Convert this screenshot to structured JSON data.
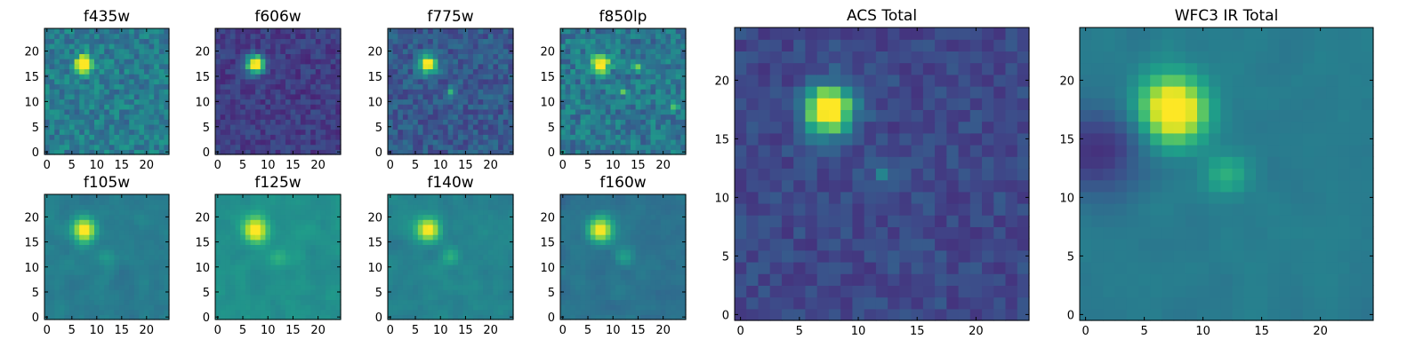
{
  "colormap": [
    "#440154",
    "#482878",
    "#3e4989",
    "#31688e",
    "#26828e",
    "#1f9e89",
    "#35b779",
    "#6ece58",
    "#b5de2b",
    "#fde725"
  ],
  "chart_data": [
    {
      "type": "heatmap",
      "title": "f435w",
      "grid_size": 25,
      "xticks": [
        0,
        5,
        10,
        15,
        20
      ],
      "yticks": [
        0,
        5,
        10,
        15,
        20
      ],
      "source": {
        "x": 7.5,
        "y": 17.5,
        "sigma": 1.2,
        "amp": 0.85
      },
      "extra_sources": [],
      "background": 0.42,
      "noise": 0.12,
      "smooth": 0
    },
    {
      "type": "heatmap",
      "title": "f606w",
      "grid_size": 25,
      "xticks": [
        0,
        5,
        10,
        15,
        20
      ],
      "yticks": [
        0,
        5,
        10,
        15,
        20
      ],
      "source": {
        "x": 7.5,
        "y": 17.5,
        "sigma": 1.25,
        "amp": 0.95
      },
      "extra_sources": [],
      "background": 0.18,
      "noise": 0.08,
      "smooth": 0
    },
    {
      "type": "heatmap",
      "title": "f775w",
      "grid_size": 25,
      "xticks": [
        0,
        5,
        10,
        15,
        20
      ],
      "yticks": [
        0,
        5,
        10,
        15,
        20
      ],
      "source": {
        "x": 7.5,
        "y": 17.5,
        "sigma": 1.2,
        "amp": 0.9
      },
      "extra_sources": [
        {
          "x": 12,
          "y": 12,
          "sigma": 0.7,
          "amp": 0.3
        }
      ],
      "background": 0.28,
      "noise": 0.1,
      "smooth": 0
    },
    {
      "type": "heatmap",
      "title": "f850lp",
      "grid_size": 25,
      "xticks": [
        0,
        5,
        10,
        15,
        20
      ],
      "yticks": [
        0,
        5,
        10,
        15,
        20
      ],
      "source": {
        "x": 7.5,
        "y": 17.5,
        "sigma": 1.2,
        "amp": 0.8
      },
      "extra_sources": [
        {
          "x": 15,
          "y": 17,
          "sigma": 0.6,
          "amp": 0.35
        },
        {
          "x": 12,
          "y": 12,
          "sigma": 0.6,
          "amp": 0.25
        },
        {
          "x": 22,
          "y": 9,
          "sigma": 0.6,
          "amp": 0.25
        }
      ],
      "background": 0.4,
      "noise": 0.13,
      "smooth": 0
    },
    {
      "type": "heatmap",
      "title": "f105w",
      "grid_size": 25,
      "xticks": [
        0,
        5,
        10,
        15,
        20
      ],
      "yticks": [
        0,
        5,
        10,
        15,
        20
      ],
      "source": {
        "x": 7.5,
        "y": 17.5,
        "sigma": 1.4,
        "amp": 0.85
      },
      "extra_sources": [
        {
          "x": 12,
          "y": 12,
          "sigma": 1.0,
          "amp": 0.25
        }
      ],
      "background": 0.42,
      "noise": 0.09,
      "smooth": 1
    },
    {
      "type": "heatmap",
      "title": "f125w",
      "grid_size": 25,
      "xticks": [
        0,
        5,
        10,
        15,
        20
      ],
      "yticks": [
        0,
        5,
        10,
        15,
        20
      ],
      "source": {
        "x": 7.5,
        "y": 17.5,
        "sigma": 1.5,
        "amp": 0.75
      },
      "extra_sources": [
        {
          "x": 12,
          "y": 12,
          "sigma": 1.0,
          "amp": 0.2
        }
      ],
      "background": 0.5,
      "noise": 0.08,
      "smooth": 1
    },
    {
      "type": "heatmap",
      "title": "f140w",
      "grid_size": 25,
      "xticks": [
        0,
        5,
        10,
        15,
        20
      ],
      "yticks": [
        0,
        5,
        10,
        15,
        20
      ],
      "source": {
        "x": 7.5,
        "y": 17.5,
        "sigma": 1.4,
        "amp": 0.8
      },
      "extra_sources": [
        {
          "x": 12,
          "y": 12,
          "sigma": 0.9,
          "amp": 0.3
        }
      ],
      "background": 0.45,
      "noise": 0.09,
      "smooth": 1
    },
    {
      "type": "heatmap",
      "title": "f160w",
      "grid_size": 25,
      "xticks": [
        0,
        5,
        10,
        15,
        20
      ],
      "yticks": [
        0,
        5,
        10,
        15,
        20
      ],
      "source": {
        "x": 7.5,
        "y": 17.5,
        "sigma": 1.5,
        "amp": 0.85
      },
      "extra_sources": [
        {
          "x": 12,
          "y": 12,
          "sigma": 0.9,
          "amp": 0.35
        }
      ],
      "background": 0.38,
      "noise": 0.09,
      "smooth": 1
    },
    {
      "type": "heatmap",
      "title": "ACS Total",
      "grid_size": 25,
      "xticks": [
        0,
        5,
        10,
        15,
        20
      ],
      "yticks": [
        0,
        5,
        10,
        15,
        20
      ],
      "source": {
        "x": 7.5,
        "y": 17.5,
        "sigma": 1.4,
        "amp": 0.95
      },
      "extra_sources": [
        {
          "x": 12,
          "y": 12,
          "sigma": 0.6,
          "amp": 0.25
        }
      ],
      "background": 0.22,
      "noise": 0.07,
      "smooth": 0
    },
    {
      "type": "heatmap",
      "title": "WFC3 IR Total",
      "grid_size": 25,
      "xticks": [
        0,
        5,
        10,
        15,
        20
      ],
      "yticks": [
        0,
        5,
        10,
        15,
        20
      ],
      "source": {
        "x": 7.5,
        "y": 17.5,
        "sigma": 1.8,
        "amp": 0.9
      },
      "extra_sources": [
        {
          "x": 12,
          "y": 12,
          "sigma": 1.0,
          "amp": 0.35
        }
      ],
      "background": 0.42,
      "noise": 0.05,
      "smooth": 1,
      "dark_region": {
        "x": 1.5,
        "y": 14,
        "sigma": 2.5,
        "amp": 0.3
      }
    }
  ]
}
